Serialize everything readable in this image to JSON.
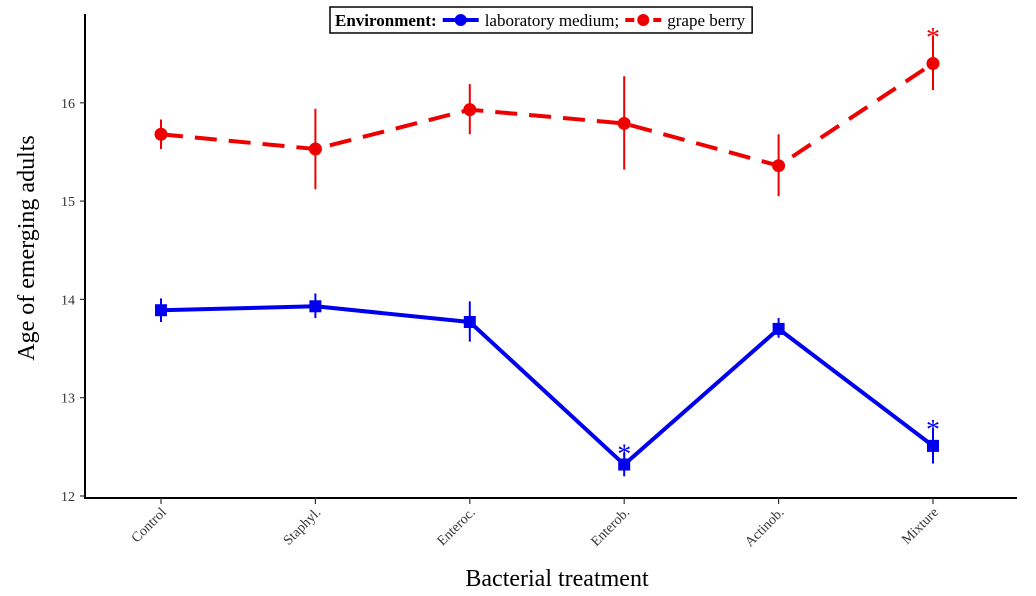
{
  "chart_data": {
    "type": "line",
    "xlabel": "Bacterial treatment",
    "ylabel": "Age of emerging adults",
    "categories": [
      "Control",
      "Staphyl.",
      "Enteroc.",
      "Enterob.",
      "Actinob.",
      "Mixture"
    ],
    "ylim": [
      12,
      17
    ],
    "yticks": [
      12,
      13,
      14,
      15,
      16
    ],
    "grid": false,
    "legend": {
      "title": "Environment:",
      "placement": "top-center",
      "entries": [
        "laboratory medium;",
        "grape berry"
      ]
    },
    "series": [
      {
        "name": "laboratory medium",
        "color": "#0000ee",
        "line_style": "solid",
        "marker": "square",
        "values": [
          13.89,
          13.93,
          13.77,
          12.32,
          13.7,
          12.51
        ],
        "error_low": [
          13.77,
          13.81,
          13.57,
          12.2,
          13.61,
          12.33
        ],
        "error_high": [
          14.01,
          14.06,
          13.98,
          12.44,
          13.81,
          12.69
        ],
        "significance": [
          "",
          "",
          "",
          "*",
          "",
          "*"
        ]
      },
      {
        "name": "grape berry",
        "color": "#ee0000",
        "line_style": "dashed",
        "marker": "circle",
        "values": [
          15.68,
          15.53,
          15.93,
          15.79,
          15.36,
          16.4
        ],
        "error_low": [
          15.53,
          15.12,
          15.68,
          15.32,
          15.05,
          16.13
        ],
        "error_high": [
          15.83,
          15.94,
          16.19,
          16.27,
          15.68,
          16.68
        ],
        "significance": [
          "",
          "",
          "",
          "",
          "",
          "*"
        ]
      }
    ]
  }
}
